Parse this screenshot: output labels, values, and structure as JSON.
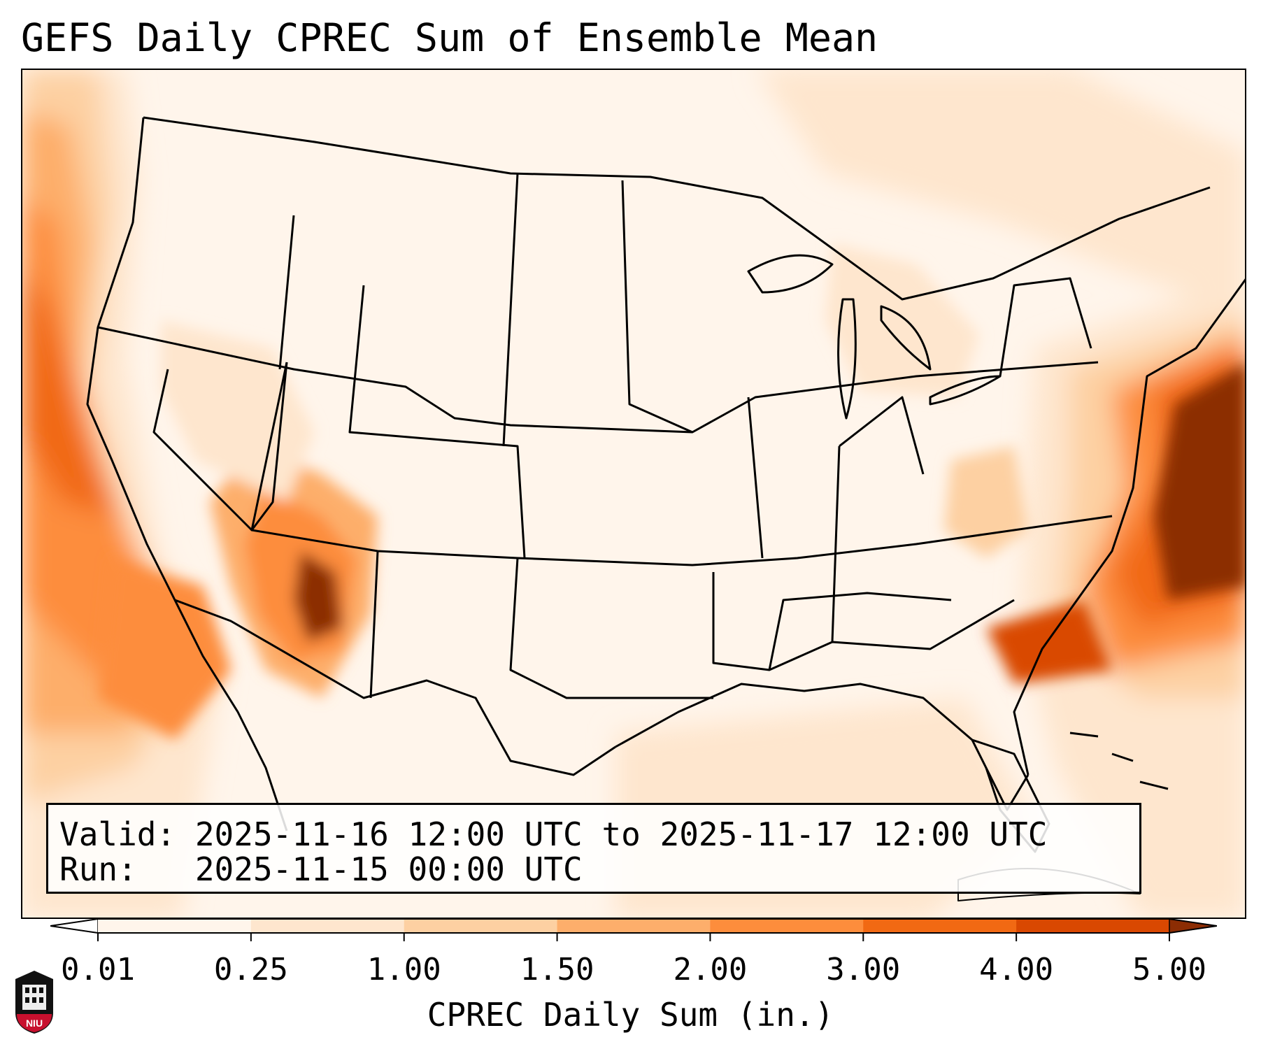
{
  "title": "GEFS Daily CPREC Sum of Ensemble Mean",
  "info": {
    "valid_line": "Valid: 2025-11-16 12:00 UTC to 2025-11-17 12:00 UTC",
    "run_line": "Run:   2025-11-15 00:00 UTC"
  },
  "colorbar": {
    "label": "CPREC Daily Sum (in.)",
    "ticks": [
      "0.01",
      "0.25",
      "1.00",
      "1.50",
      "2.00",
      "3.00",
      "4.00",
      "5.00"
    ],
    "colors": [
      "#fff5eb",
      "#fee6ce",
      "#fdd0a2",
      "#fdae6b",
      "#fd8d3c",
      "#f16913",
      "#d94801",
      "#8c2d04"
    ],
    "extend": "both"
  },
  "logo": {
    "text": "NIU"
  }
}
